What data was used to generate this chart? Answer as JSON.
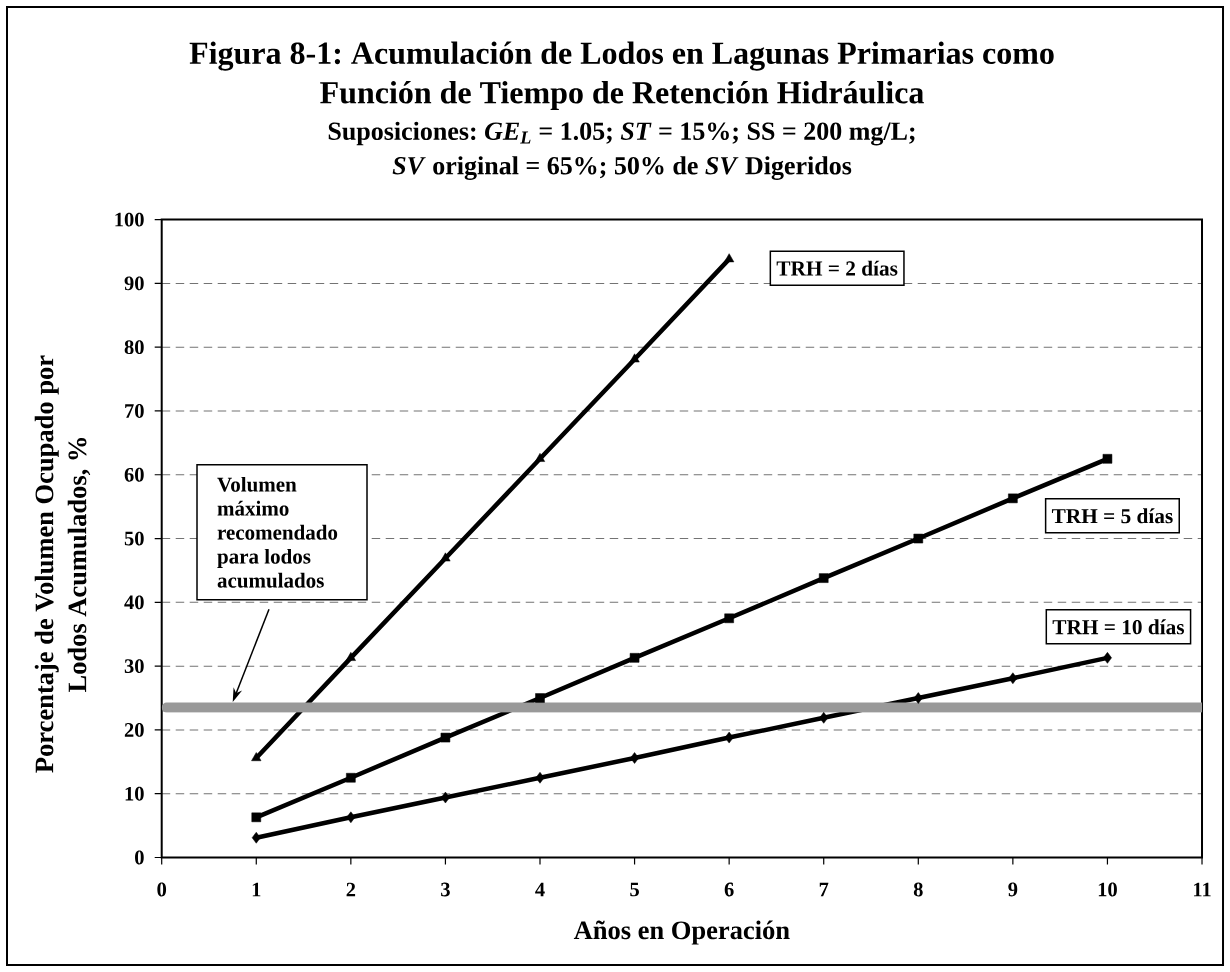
{
  "chart_data": {
    "type": "line",
    "title": "Figura 8-1: Acumulación de Lodos en Lagunas Primarias como Función de Tiempo de Retención Hidráulica",
    "subtitle": "Suposiciones: *GE$_{L}$* = 1.05; *ST* = 15%; SS = 200 mg/L; *SV* original = 65%; 50% de *SV* Digeridos",
    "xlabel": "Años en Operación",
    "ylabel": "Porcentaje de Volumen Ocupado por Lodos Acumulados, %",
    "x": [
      1,
      2,
      3,
      4,
      5,
      6,
      7,
      8,
      9,
      10
    ],
    "series": [
      {
        "name": "TRH = 2 días",
        "color": "#000000",
        "marker": "triangle",
        "x": [
          1,
          2,
          3,
          4,
          5,
          6
        ],
        "values": [
          15.6,
          31.3,
          46.9,
          62.5,
          78.1,
          93.8
        ]
      },
      {
        "name": "TRH = 5 días",
        "color": "#000000",
        "marker": "square",
        "values": [
          6.3,
          12.5,
          18.8,
          25,
          31.3,
          37.5,
          43.8,
          50,
          56.3,
          62.5
        ]
      },
      {
        "name": "TRH = 10 días",
        "color": "#000000",
        "marker": "diamond",
        "values": [
          3.1,
          6.3,
          9.4,
          12.5,
          15.6,
          18.8,
          21.9,
          25,
          28.1,
          31.3
        ]
      }
    ],
    "xlim": [
      0,
      11
    ],
    "xticks": [
      0,
      1,
      2,
      3,
      4,
      5,
      6,
      7,
      8,
      9,
      10,
      11
    ],
    "ylim": [
      0,
      100
    ],
    "yticks": [
      0,
      10,
      20,
      30,
      40,
      50,
      60,
      70,
      80,
      90,
      100
    ],
    "grid": "y",
    "ref_lines": [
      {
        "axis": "y",
        "value": 23.5,
        "label": "Volumen máximo recomendado para lodos acumulados",
        "color": "#999999"
      }
    ]
  }
}
